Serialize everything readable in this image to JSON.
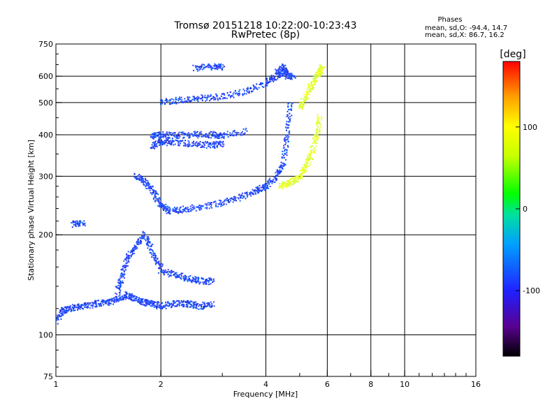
{
  "chart_data": {
    "type": "scatter",
    "title": "Tromsø 20151218 10:22:00-10:23:43",
    "subtitle": "RwPretec (8p)",
    "xlabel": "Frequency [MHz]",
    "ylabel": "Stationary phase Virtual Height [km]",
    "x_scale": "log",
    "y_scale": "log",
    "xlim": [
      1,
      16
    ],
    "ylim": [
      75,
      750
    ],
    "x_ticks": [
      1,
      2,
      4,
      6,
      8,
      10,
      16
    ],
    "x_tick_labels": [
      "1",
      "2",
      "4",
      "6",
      "8",
      "10",
      "16"
    ],
    "y_ticks": [
      75,
      100,
      200,
      300,
      400,
      500,
      600,
      750
    ],
    "y_tick_labels": [
      "75",
      "100",
      "200",
      "300",
      "400",
      "500",
      "600",
      "750"
    ],
    "grid": true,
    "grid_x": [
      2,
      4,
      6,
      8,
      10
    ],
    "grid_y": [
      100,
      200,
      300,
      400,
      500,
      600
    ],
    "legend": {
      "title": "Phases",
      "line1": "mean, sd,O: -94.4, 14.7",
      "line2": "mean, sd,X:  86.7, 16.2",
      "placement": "top-right"
    },
    "colorbar": {
      "label": "[deg]",
      "range": [
        -180,
        180
      ],
      "ticks": [
        -100,
        0,
        100
      ],
      "tick_labels": [
        "-100",
        "0",
        "100"
      ],
      "colormap": "rainbow: black-purple-blue-cyan-green-yellow-orange-red"
    },
    "series": [
      {
        "name": "O",
        "mean_phase": -94.4,
        "color": "#2040ff",
        "traces": [
          {
            "f": [
              1.0,
              1.05,
              1.1,
              1.2,
              1.3,
              1.4,
              1.5,
              1.6,
              1.7,
              1.8,
              1.9,
              2.0,
              2.2,
              2.4,
              2.6,
              2.8
            ],
            "h": [
              110,
              118,
              120,
              122,
              124,
              125,
              128,
              132,
              128,
              125,
              124,
              122,
              124,
              124,
              122,
              124
            ]
          },
          {
            "f": [
              1.5,
              1.55,
              1.6,
              1.7,
              1.8,
              1.9,
              2.0
            ],
            "h": [
              135,
              150,
              170,
              185,
              200,
              175,
              160
            ]
          },
          {
            "f": [
              2.0,
              2.2,
              2.4,
              2.6,
              2.8
            ],
            "h": [
              155,
              152,
              148,
              145,
              145
            ]
          },
          {
            "f": [
              1.7,
              1.8,
              1.9,
              2.0,
              2.1,
              2.3,
              2.6,
              3.0,
              3.4,
              3.8,
              4.0,
              4.3,
              4.5,
              4.6,
              4.7
            ],
            "h": [
              300,
              290,
              270,
              245,
              236,
              238,
              242,
              250,
              260,
              272,
              280,
              300,
              330,
              400,
              500
            ]
          },
          {
            "f": [
              1.9,
              2.0,
              2.2,
              2.5,
              2.8,
              3.0
            ],
            "h": [
              370,
              380,
              378,
              375,
              372,
              375
            ]
          },
          {
            "f": [
              1.9,
              2.0,
              2.2,
              2.5,
              2.8,
              3.0,
              3.5
            ],
            "h": [
              395,
              400,
              398,
              400,
              400,
              398,
              410
            ]
          },
          {
            "f": [
              2.0,
              2.3,
              2.6,
              3.0,
              3.5,
              4.0,
              4.3,
              4.6
            ],
            "h": [
              500,
              510,
              515,
              520,
              540,
              570,
              600,
              620
            ]
          },
          {
            "f": [
              2.5,
              2.8,
              3.0
            ],
            "h": [
              635,
              640,
              640
            ]
          },
          {
            "f": [
              1.12,
              1.2
            ],
            "h": [
              215,
              217
            ]
          },
          {
            "f": [
              4.3,
              4.5,
              4.6,
              4.8
            ],
            "h": [
              620,
              640,
              600,
              600
            ]
          }
        ]
      },
      {
        "name": "X",
        "mean_phase": 86.7,
        "color": "#e0ff30",
        "traces": [
          {
            "f": [
              4.4,
              4.6,
              4.8,
              5.0,
              5.2,
              5.4,
              5.6,
              5.7
            ],
            "h": [
              280,
              285,
              290,
              300,
              320,
              350,
              400,
              450
            ]
          },
          {
            "f": [
              5.0,
              5.2,
              5.4,
              5.6,
              5.7,
              5.8
            ],
            "h": [
              480,
              520,
              560,
              600,
              620,
              640
            ]
          }
        ]
      }
    ]
  }
}
